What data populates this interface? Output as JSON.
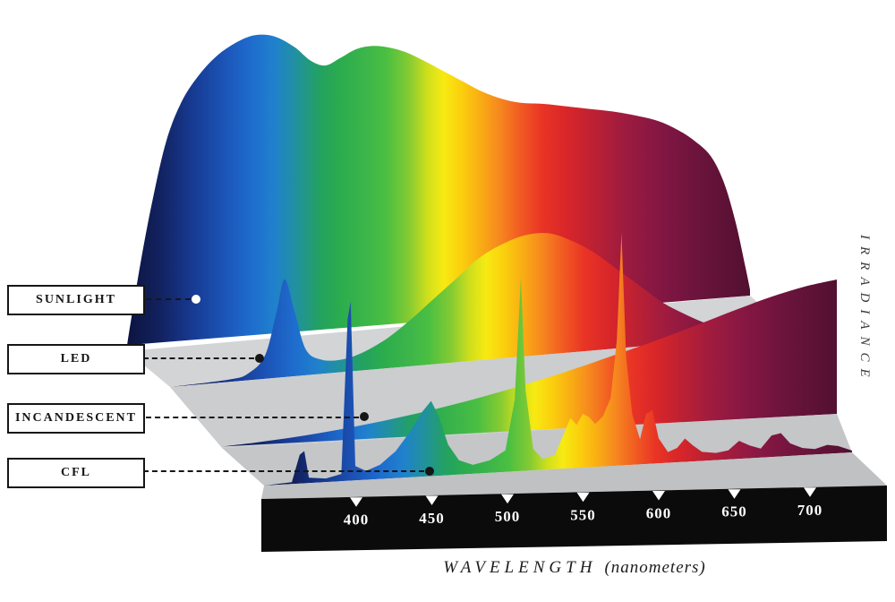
{
  "figure": {
    "name": "light-source-spectra-comparison"
  },
  "axis": {
    "x_title_main": "WAVELENGTH",
    "x_title_sub": "(nanometers)",
    "y_title": "IRRADIANCE",
    "tick_labels": [
      "400",
      "450",
      "500",
      "550",
      "600",
      "650",
      "700"
    ]
  },
  "legend": {
    "items": [
      {
        "label": "SUNLIGHT",
        "dot_color": "#ffffff"
      },
      {
        "label": "LED",
        "dot_color": "#161616"
      },
      {
        "label": "INCANDESCENT",
        "dot_color": "#161616"
      },
      {
        "label": "CFL",
        "dot_color": "#161616"
      }
    ]
  },
  "colors": {
    "background": "#ffffff",
    "axis_bar": "#0b0b0b",
    "tick_and_number": "#ffffff",
    "label_border": "#161616",
    "planes": [
      "#d2d4d6",
      "#cbcdcf",
      "#c4c6c8",
      "#bfc1c3"
    ]
  },
  "chart_data": {
    "type": "area",
    "title": "",
    "xlabel": "WAVELENGTH (nanometers)",
    "ylabel": "IRRADIANCE",
    "x_range": [
      380,
      760
    ],
    "x_ticks": [
      400,
      450,
      500,
      550,
      600,
      650,
      700
    ],
    "y_units": "relative irradiance (0-1), unlabeled axis",
    "layout_hint": "3D perspective stack, back-to-front: SUNLIGHT, LED, INCANDESCENT, CFL; spectral rainbow fill by wavelength",
    "spectrum_stops": [
      [
        380,
        "#0d1340"
      ],
      [
        400,
        "#12225f"
      ],
      [
        420,
        "#173a92"
      ],
      [
        440,
        "#1c55b8"
      ],
      [
        455,
        "#1e6bcd"
      ],
      [
        470,
        "#2081cd"
      ],
      [
        484,
        "#21929b"
      ],
      [
        497,
        "#23a162"
      ],
      [
        510,
        "#2bac4d"
      ],
      [
        525,
        "#3cb54a"
      ],
      [
        538,
        "#4abf42"
      ],
      [
        552,
        "#86cb32"
      ],
      [
        563,
        "#cfdf1d"
      ],
      [
        573,
        "#f7ea12"
      ],
      [
        584,
        "#fbcf0e"
      ],
      [
        596,
        "#f9ac14"
      ],
      [
        608,
        "#f6851f"
      ],
      [
        620,
        "#f15a22"
      ],
      [
        633,
        "#e93425"
      ],
      [
        648,
        "#d92629"
      ],
      [
        663,
        "#bf2132"
      ],
      [
        680,
        "#a31c3e"
      ],
      [
        702,
        "#871743"
      ],
      [
        726,
        "#6d143d"
      ],
      [
        760,
        "#521030"
      ]
    ],
    "series": [
      {
        "name": "SUNLIGHT",
        "style": "smooth",
        "points": [
          [
            380,
            0.02
          ],
          [
            388,
            0.28
          ],
          [
            396,
            0.5
          ],
          [
            404,
            0.68
          ],
          [
            413,
            0.8
          ],
          [
            423,
            0.88
          ],
          [
            434,
            0.94
          ],
          [
            446,
            0.98
          ],
          [
            458,
            1.0
          ],
          [
            470,
            0.99
          ],
          [
            482,
            0.95
          ],
          [
            492,
            0.9
          ],
          [
            501,
            0.88
          ],
          [
            510,
            0.9
          ],
          [
            520,
            0.925
          ],
          [
            530,
            0.93
          ],
          [
            540,
            0.92
          ],
          [
            550,
            0.9
          ],
          [
            560,
            0.87
          ],
          [
            572,
            0.83
          ],
          [
            584,
            0.79
          ],
          [
            596,
            0.75
          ],
          [
            608,
            0.72
          ],
          [
            620,
            0.7
          ],
          [
            634,
            0.69
          ],
          [
            648,
            0.675
          ],
          [
            662,
            0.66
          ],
          [
            676,
            0.645
          ],
          [
            690,
            0.625
          ],
          [
            704,
            0.6
          ],
          [
            716,
            0.565
          ],
          [
            726,
            0.525
          ],
          [
            736,
            0.47
          ],
          [
            744,
            0.38
          ],
          [
            751,
            0.25
          ],
          [
            757,
            0.1
          ],
          [
            760,
            0.02
          ]
        ]
      },
      {
        "name": "LED",
        "style": "smooth",
        "points": [
          [
            380,
            0
          ],
          [
            416,
            0.01
          ],
          [
            428,
            0.03
          ],
          [
            438,
            0.1
          ],
          [
            445,
            0.28
          ],
          [
            450,
            0.42
          ],
          [
            456,
            0.28
          ],
          [
            463,
            0.11
          ],
          [
            473,
            0.06
          ],
          [
            486,
            0.055
          ],
          [
            499,
            0.08
          ],
          [
            513,
            0.13
          ],
          [
            527,
            0.2
          ],
          [
            541,
            0.28
          ],
          [
            555,
            0.36
          ],
          [
            569,
            0.44
          ],
          [
            583,
            0.49
          ],
          [
            597,
            0.52
          ],
          [
            611,
            0.52
          ],
          [
            625,
            0.48
          ],
          [
            639,
            0.42
          ],
          [
            653,
            0.34
          ],
          [
            667,
            0.26
          ],
          [
            681,
            0.18
          ],
          [
            695,
            0.12
          ],
          [
            709,
            0.07
          ],
          [
            723,
            0.04
          ],
          [
            737,
            0.02
          ],
          [
            750,
            0.01
          ],
          [
            760,
            0
          ]
        ]
      },
      {
        "name": "INCANDESCENT",
        "style": "smooth",
        "points": [
          [
            380,
            0.01
          ],
          [
            400,
            0.025
          ],
          [
            420,
            0.045
          ],
          [
            440,
            0.07
          ],
          [
            460,
            0.1
          ],
          [
            480,
            0.135
          ],
          [
            500,
            0.175
          ],
          [
            520,
            0.22
          ],
          [
            540,
            0.27
          ],
          [
            560,
            0.325
          ],
          [
            580,
            0.385
          ],
          [
            600,
            0.45
          ],
          [
            620,
            0.52
          ],
          [
            640,
            0.59
          ],
          [
            660,
            0.665
          ],
          [
            680,
            0.745
          ],
          [
            700,
            0.825
          ],
          [
            720,
            0.9
          ],
          [
            740,
            0.96
          ],
          [
            760,
            1.0
          ]
        ]
      },
      {
        "name": "CFL",
        "style": "spiky",
        "points": [
          [
            380,
            0
          ],
          [
            398,
            0.01
          ],
          [
            403,
            0.16
          ],
          [
            406,
            0.18
          ],
          [
            409,
            0.03
          ],
          [
            420,
            0.02
          ],
          [
            430,
            0.04
          ],
          [
            434,
            0.9
          ],
          [
            436,
            1.0
          ],
          [
            439,
            0.08
          ],
          [
            446,
            0.05
          ],
          [
            455,
            0.08
          ],
          [
            465,
            0.15
          ],
          [
            474,
            0.25
          ],
          [
            482,
            0.36
          ],
          [
            488,
            0.42
          ],
          [
            493,
            0.33
          ],
          [
            499,
            0.17
          ],
          [
            506,
            0.08
          ],
          [
            515,
            0.05
          ],
          [
            526,
            0.07
          ],
          [
            536,
            0.12
          ],
          [
            542,
            0.4
          ],
          [
            546,
            1.08
          ],
          [
            549,
            0.45
          ],
          [
            554,
            0.12
          ],
          [
            560,
            0.06
          ],
          [
            568,
            0.08
          ],
          [
            574,
            0.2
          ],
          [
            578,
            0.28
          ],
          [
            582,
            0.24
          ],
          [
            586,
            0.3
          ],
          [
            590,
            0.28
          ],
          [
            594,
            0.24
          ],
          [
            599,
            0.28
          ],
          [
            604,
            0.38
          ],
          [
            608,
            0.7
          ],
          [
            611,
            1.3
          ],
          [
            614,
            0.6
          ],
          [
            618,
            0.28
          ],
          [
            623,
            0.14
          ],
          [
            627,
            0.28
          ],
          [
            631,
            0.3
          ],
          [
            635,
            0.14
          ],
          [
            641,
            0.06
          ],
          [
            647,
            0.08
          ],
          [
            652,
            0.13
          ],
          [
            657,
            0.09
          ],
          [
            663,
            0.05
          ],
          [
            672,
            0.04
          ],
          [
            680,
            0.05
          ],
          [
            687,
            0.1
          ],
          [
            694,
            0.07
          ],
          [
            701,
            0.05
          ],
          [
            708,
            0.12
          ],
          [
            714,
            0.13
          ],
          [
            720,
            0.07
          ],
          [
            728,
            0.04
          ],
          [
            736,
            0.03
          ],
          [
            744,
            0.05
          ],
          [
            751,
            0.04
          ],
          [
            757,
            0.02
          ],
          [
            760,
            0.01
          ]
        ]
      }
    ]
  }
}
